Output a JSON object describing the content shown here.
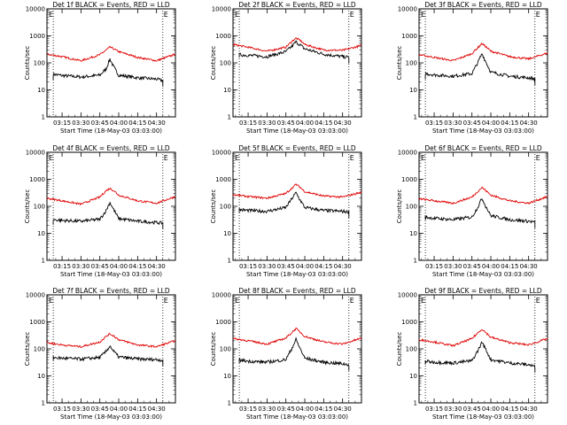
{
  "colors": {
    "events": "#000000",
    "lld": "#e00000",
    "axis": "#000000"
  },
  "shared": {
    "ylabel": "Counts/sec",
    "xlabel": "Start Time (18-May-03 03:03:00)",
    "xticks": [
      "03:15",
      "03:30",
      "03:45",
      "04:00",
      "04:15",
      "04:30"
    ],
    "yticks": [
      "1",
      "10",
      "100",
      "1000",
      "10000"
    ],
    "ylim": [
      1,
      10000
    ],
    "yscale": "log",
    "marker_label": "E"
  },
  "chart_data": [
    {
      "type": "line",
      "title": "Det 1f BLACK = Events, RED = LLD",
      "series": [
        {
          "name": "BLACK = Events",
          "x": [
            "03:08",
            "03:15",
            "03:30",
            "03:45",
            "03:50",
            "03:53",
            "03:56",
            "04:00",
            "04:15",
            "04:30",
            "04:35"
          ],
          "y": [
            38,
            34,
            30,
            35,
            60,
            140,
            70,
            35,
            28,
            25,
            22
          ]
        },
        {
          "name": "RED = LLD",
          "x": [
            "03:03",
            "03:15",
            "03:30",
            "03:45",
            "03:50",
            "03:53",
            "03:56",
            "04:00",
            "04:15",
            "04:30",
            "04:45"
          ],
          "y": [
            210,
            170,
            120,
            200,
            300,
            380,
            330,
            260,
            160,
            120,
            210
          ]
        }
      ]
    },
    {
      "type": "line",
      "title": "Det 2f BLACK = Events, RED = LLD",
      "series": [
        {
          "name": "BLACK = Events",
          "x": [
            "03:08",
            "03:15",
            "03:30",
            "03:45",
            "03:50",
            "03:53",
            "03:56",
            "04:00",
            "04:15",
            "04:30",
            "04:35"
          ],
          "y": [
            200,
            190,
            170,
            260,
            420,
            600,
            470,
            330,
            210,
            170,
            160
          ]
        },
        {
          "name": "RED = LLD",
          "x": [
            "03:03",
            "03:15",
            "03:30",
            "03:45",
            "03:50",
            "03:53",
            "03:56",
            "04:00",
            "04:15",
            "04:30",
            "04:45"
          ],
          "y": [
            480,
            380,
            270,
            380,
            640,
            820,
            700,
            480,
            300,
            290,
            440
          ]
        }
      ]
    },
    {
      "type": "line",
      "title": "Det 3f BLACK = Events, RED = LLD",
      "series": [
        {
          "name": "BLACK = Events",
          "x": [
            "03:08",
            "03:15",
            "03:30",
            "03:45",
            "03:50",
            "03:53",
            "03:56",
            "04:00",
            "04:15",
            "04:30",
            "04:35"
          ],
          "y": [
            40,
            36,
            32,
            40,
            110,
            220,
            110,
            45,
            32,
            28,
            25
          ]
        },
        {
          "name": "RED = LLD",
          "x": [
            "03:03",
            "03:15",
            "03:30",
            "03:45",
            "03:50",
            "03:53",
            "03:56",
            "04:00",
            "04:15",
            "04:30",
            "04:45"
          ],
          "y": [
            200,
            160,
            120,
            220,
            380,
            520,
            400,
            270,
            170,
            140,
            230
          ]
        }
      ]
    },
    {
      "type": "line",
      "title": "Det 4f BLACK = Events, RED = LLD",
      "series": [
        {
          "name": "BLACK = Events",
          "x": [
            "03:08",
            "03:15",
            "03:30",
            "03:45",
            "03:50",
            "03:53",
            "03:56",
            "04:00",
            "04:15",
            "04:30",
            "04:35"
          ],
          "y": [
            32,
            30,
            28,
            33,
            70,
            140,
            75,
            35,
            28,
            25,
            24
          ]
        },
        {
          "name": "RED = LLD",
          "x": [
            "03:03",
            "03:15",
            "03:30",
            "03:45",
            "03:50",
            "03:53",
            "03:56",
            "04:00",
            "04:15",
            "04:30",
            "04:45"
          ],
          "y": [
            200,
            160,
            120,
            220,
            380,
            460,
            380,
            260,
            160,
            130,
            230
          ]
        }
      ]
    },
    {
      "type": "line",
      "title": "Det 5f BLACK = Events, RED = LLD",
      "series": [
        {
          "name": "BLACK = Events",
          "x": [
            "03:08",
            "03:15",
            "03:30",
            "03:45",
            "03:50",
            "03:53",
            "03:56",
            "04:00",
            "04:15",
            "04:30",
            "04:35"
          ],
          "y": [
            75,
            70,
            65,
            90,
            200,
            320,
            180,
            90,
            70,
            65,
            62
          ]
        },
        {
          "name": "RED = LLD",
          "x": [
            "03:03",
            "03:15",
            "03:30",
            "03:45",
            "03:50",
            "03:53",
            "03:56",
            "04:00",
            "04:15",
            "04:30",
            "04:45"
          ],
          "y": [
            270,
            230,
            200,
            300,
            480,
            650,
            520,
            350,
            240,
            220,
            330
          ]
        }
      ]
    },
    {
      "type": "line",
      "title": "Det 6f BLACK = Events, RED = LLD",
      "series": [
        {
          "name": "BLACK = Events",
          "x": [
            "03:08",
            "03:15",
            "03:30",
            "03:45",
            "03:50",
            "03:53",
            "03:56",
            "04:00",
            "04:15",
            "04:30",
            "04:35"
          ],
          "y": [
            40,
            36,
            32,
            40,
            100,
            200,
            100,
            45,
            32,
            28,
            26
          ]
        },
        {
          "name": "RED = LLD",
          "x": [
            "03:03",
            "03:15",
            "03:30",
            "03:45",
            "03:50",
            "03:53",
            "03:56",
            "04:00",
            "04:15",
            "04:30",
            "04:45"
          ],
          "y": [
            190,
            160,
            130,
            220,
            370,
            500,
            380,
            260,
            160,
            130,
            230
          ]
        }
      ]
    },
    {
      "type": "line",
      "title": "Det 7f BLACK = Events, RED = LLD",
      "series": [
        {
          "name": "BLACK = Events",
          "x": [
            "03:08",
            "03:15",
            "03:30",
            "03:45",
            "03:50",
            "03:53",
            "03:56",
            "04:00",
            "04:15",
            "04:30",
            "04:35"
          ],
          "y": [
            48,
            45,
            42,
            48,
            80,
            130,
            80,
            50,
            42,
            40,
            38
          ]
        },
        {
          "name": "RED = LLD",
          "x": [
            "03:03",
            "03:15",
            "03:30",
            "03:45",
            "03:50",
            "03:53",
            "03:56",
            "04:00",
            "04:15",
            "04:30",
            "04:45"
          ],
          "y": [
            170,
            140,
            120,
            180,
            290,
            360,
            300,
            220,
            140,
            120,
            200
          ]
        }
      ]
    },
    {
      "type": "line",
      "title": "Det 8f BLACK = Events, RED = LLD",
      "series": [
        {
          "name": "BLACK = Events",
          "x": [
            "03:08",
            "03:15",
            "03:30",
            "03:45",
            "03:50",
            "03:53",
            "03:56",
            "04:00",
            "04:15",
            "04:30",
            "04:35"
          ],
          "y": [
            38,
            35,
            32,
            40,
            110,
            220,
            110,
            45,
            32,
            28,
            26
          ]
        },
        {
          "name": "RED = LLD",
          "x": [
            "03:03",
            "03:15",
            "03:30",
            "03:45",
            "03:50",
            "03:53",
            "03:56",
            "04:00",
            "04:15",
            "04:30",
            "04:45"
          ],
          "y": [
            240,
            200,
            150,
            250,
            420,
            560,
            430,
            290,
            180,
            150,
            250
          ]
        }
      ]
    },
    {
      "type": "line",
      "title": "Det 9f BLACK = Events, RED = LLD",
      "series": [
        {
          "name": "BLACK = Events",
          "x": [
            "03:08",
            "03:15",
            "03:30",
            "03:45",
            "03:50",
            "03:53",
            "03:56",
            "04:00",
            "04:15",
            "04:30",
            "04:35"
          ],
          "y": [
            35,
            32,
            30,
            36,
            90,
            180,
            95,
            40,
            30,
            26,
            22
          ]
        },
        {
          "name": "RED = LLD",
          "x": [
            "03:03",
            "03:15",
            "03:30",
            "03:45",
            "03:50",
            "03:53",
            "03:56",
            "04:00",
            "04:15",
            "04:30",
            "04:45"
          ],
          "y": [
            220,
            180,
            130,
            240,
            400,
            540,
            400,
            270,
            170,
            140,
            240
          ]
        }
      ]
    }
  ]
}
